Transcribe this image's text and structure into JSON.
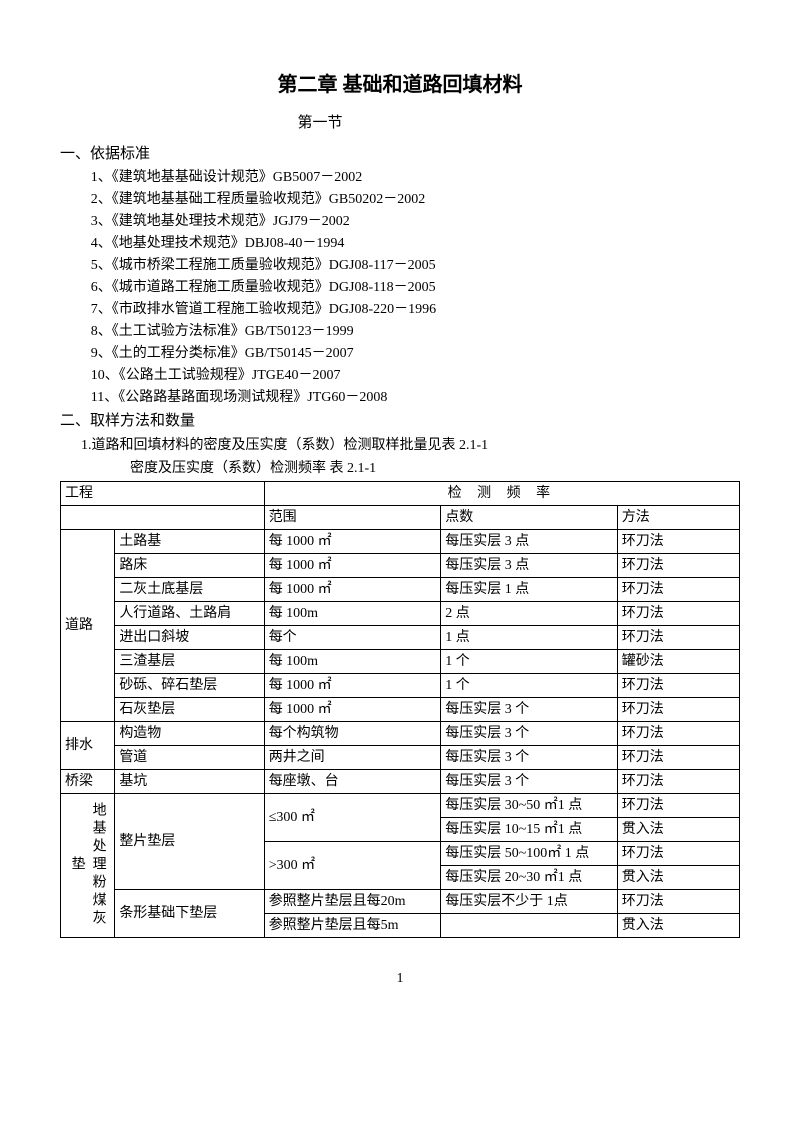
{
  "chapter_title": "第二章  基础和道路回填材料",
  "section_title": "第一节",
  "sec1": {
    "heading": "一、依据标准",
    "items": [
      "1、《建筑地基基础设计规范》GB5007－2002",
      "2、《建筑地基基础工程质量验收规范》GB50202－2002",
      "3、《建筑地基处理技术规范》JGJ79－2002",
      "4、《地基处理技术规范》DBJ08-40－1994",
      "5、《城市桥梁工程施工质量验收规范》DGJ08-117－2005",
      "6、《城市道路工程施工质量验收规范》DGJ08-118－2005",
      "7、《市政排水管道工程施工验收规范》DGJ08-220－1996",
      "8、《土工试验方法标准》GB/T50123－1999",
      "9、《土的工程分类标准》GB/T50145－2007",
      "10、《公路土工试验规程》JTGE40－2007",
      "11、《公路路基路面现场测试规程》JTG60－2008"
    ]
  },
  "sec2": {
    "heading": "二、取样方法和数量",
    "item1": "1.道路和回填材料的密度及压实度（系数）检测取样批量见表 2.1-1",
    "caption": "密度及压实度（系数）检测频率    表 2.1-1"
  },
  "table": {
    "h_project": "工程",
    "h_freq": "检 测 频 率",
    "h_range": "范围",
    "h_points": "点数",
    "h_method": "方法",
    "road": "道路",
    "drain": "排水",
    "bridge": "桥梁",
    "ground": "地基处理粉煤灰垫",
    "r": [
      {
        "a": "土路基",
        "b": "每 1000 ㎡",
        "c": "每压实层 3 点",
        "d": "环刀法"
      },
      {
        "a": "路床",
        "b": "每 1000 ㎡",
        "c": "每压实层 3 点",
        "d": "环刀法"
      },
      {
        "a": "二灰土底基层",
        "b": "每 1000 ㎡",
        "c": "每压实层 1 点",
        "d": "环刀法"
      },
      {
        "a": "人行道路、土路肩",
        "b": "每 100m",
        "c": "2 点",
        "d": "环刀法"
      },
      {
        "a": "进出口斜坡",
        "b": "每个",
        "c": "1 点",
        "d": "环刀法"
      },
      {
        "a": "三渣基层",
        "b": "每 100m",
        "c": "1 个",
        "d": "罐砂法"
      },
      {
        "a": "砂砾、碎石垫层",
        "b": "每 1000 ㎡",
        "c": "1 个",
        "d": "环刀法"
      },
      {
        "a": "石灰垫层",
        "b": "每 1000 ㎡",
        "c": "每压实层 3 个",
        "d": "环刀法"
      },
      {
        "a": "构造物",
        "b": "每个构筑物",
        "c": "每压实层 3 个",
        "d": "环刀法"
      },
      {
        "a": "管道",
        "b": "两井之间",
        "c": "每压实层 3 个",
        "d": "环刀法"
      },
      {
        "a": "基坑",
        "b": "每座墩、台",
        "c": "每压实层 3 个",
        "d": "环刀法"
      },
      {
        "a": "整片垫层",
        "b": "≤300 ㎡",
        "c": "每压实层 30~50 ㎡1 点",
        "d": "环刀法"
      },
      {
        "a": "",
        "b": "",
        "c": "每压实层 10~15 ㎡1 点",
        "d": "贯入法"
      },
      {
        "a": "",
        "b": ">300 ㎡",
        "c": "每压实层  50~100㎡ 1 点",
        "d": "环刀法"
      },
      {
        "a": "",
        "b": "",
        "c": "每压实层 20~30 ㎡1 点",
        "d": "贯入法"
      },
      {
        "a": "条形基础下垫层",
        "b": "参照整片垫层且每20m",
        "c": "每压实层不少于 1点",
        "d": "环刀法"
      },
      {
        "a": "",
        "b": "参照整片垫层且每5m",
        "c": "",
        "d": "贯入法"
      }
    ]
  },
  "page_number": "1"
}
